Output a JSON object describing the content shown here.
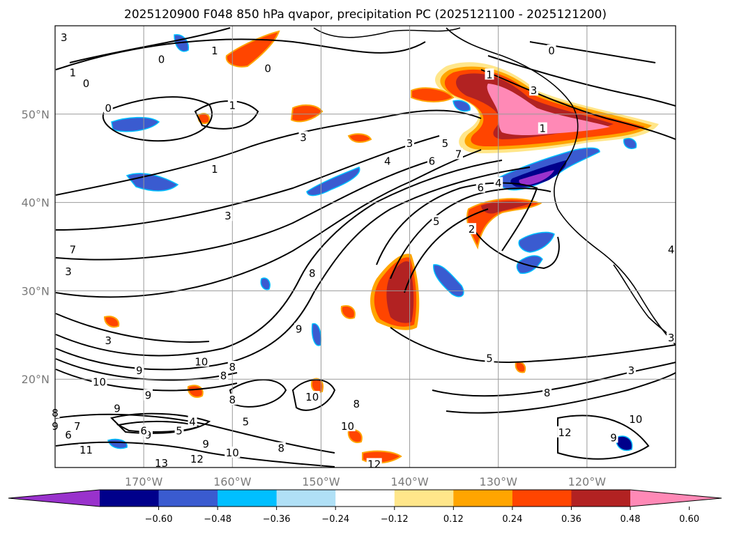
{
  "title": "2025120900 F048 850 hPa qvapor, precipitation PC (2025121100 - 2025121200)",
  "map": {
    "lon_range": [
      -180,
      -110
    ],
    "lat_range": [
      10,
      60
    ],
    "lon_ticks": [
      {
        "value": -170,
        "label": "170°W"
      },
      {
        "value": -160,
        "label": "160°W"
      },
      {
        "value": -150,
        "label": "150°W"
      },
      {
        "value": -140,
        "label": "140°W"
      },
      {
        "value": -130,
        "label": "130°W"
      },
      {
        "value": -120,
        "label": "120°W"
      }
    ],
    "lat_ticks": [
      {
        "value": 20,
        "label": "20°N"
      },
      {
        "value": 30,
        "label": "30°N"
      },
      {
        "value": 40,
        "label": "40°N"
      },
      {
        "value": 50,
        "label": "50°N"
      }
    ],
    "grid": true
  },
  "contour_labels": [
    {
      "text": "3",
      "lon": -179,
      "lat": 58.5
    },
    {
      "text": "1",
      "lon": -178,
      "lat": 54.5
    },
    {
      "text": "0",
      "lon": -176.5,
      "lat": 53.3
    },
    {
      "text": "0",
      "lon": -168,
      "lat": 56
    },
    {
      "text": "0",
      "lon": -156,
      "lat": 55
    },
    {
      "text": "0",
      "lon": -174,
      "lat": 50.5
    },
    {
      "text": "1",
      "lon": -160,
      "lat": 50.8
    },
    {
      "text": "3",
      "lon": -152,
      "lat": 47.2
    },
    {
      "text": "1",
      "lon": -162,
      "lat": 43.6
    },
    {
      "text": "3",
      "lon": -140,
      "lat": 46.5
    },
    {
      "text": "4",
      "lon": -142.5,
      "lat": 44.5
    },
    {
      "text": "5",
      "lon": -136,
      "lat": 46.5
    },
    {
      "text": "6",
      "lon": -137.5,
      "lat": 44.5
    },
    {
      "text": "7",
      "lon": -134.5,
      "lat": 45.3
    },
    {
      "text": "6",
      "lon": -132,
      "lat": 41.5
    },
    {
      "text": "4",
      "lon": -130,
      "lat": 42
    },
    {
      "text": "2",
      "lon": -133,
      "lat": 36.8
    },
    {
      "text": "5",
      "lon": -137,
      "lat": 37.7
    },
    {
      "text": "3",
      "lon": -160.5,
      "lat": 38.3
    },
    {
      "text": "1",
      "lon": -162,
      "lat": 57
    },
    {
      "text": "7",
      "lon": -178,
      "lat": 34.5
    },
    {
      "text": "3",
      "lon": -178.5,
      "lat": 32
    },
    {
      "text": "8",
      "lon": -151,
      "lat": 31.8
    },
    {
      "text": "3",
      "lon": -174,
      "lat": 24.2
    },
    {
      "text": "9",
      "lon": -170.5,
      "lat": 20.8
    },
    {
      "text": "10",
      "lon": -163.5,
      "lat": 21.8
    },
    {
      "text": "10",
      "lon": -175,
      "lat": 19.5
    },
    {
      "text": "8",
      "lon": -161,
      "lat": 20.2
    },
    {
      "text": "8",
      "lon": -160,
      "lat": 21.2
    },
    {
      "text": "9",
      "lon": -169.5,
      "lat": 18
    },
    {
      "text": "8",
      "lon": -180,
      "lat": 16
    },
    {
      "text": "9",
      "lon": -173,
      "lat": 16.5
    },
    {
      "text": "9",
      "lon": -180,
      "lat": 14.5
    },
    {
      "text": "7",
      "lon": -177.5,
      "lat": 14.5
    },
    {
      "text": "6",
      "lon": -178.5,
      "lat": 13.5
    },
    {
      "text": "9",
      "lon": -169.5,
      "lat": 13.5
    },
    {
      "text": "4",
      "lon": -164.5,
      "lat": 15
    },
    {
      "text": "5",
      "lon": -166,
      "lat": 14
    },
    {
      "text": "6",
      "lon": -170,
      "lat": 14
    },
    {
      "text": "5",
      "lon": -158.5,
      "lat": 15
    },
    {
      "text": "8",
      "lon": -160,
      "lat": 17.5
    },
    {
      "text": "9",
      "lon": -163,
      "lat": 12.5
    },
    {
      "text": "10",
      "lon": -151,
      "lat": 17.8
    },
    {
      "text": "10",
      "lon": -160,
      "lat": 11.5
    },
    {
      "text": "11",
      "lon": -176.5,
      "lat": 11.8
    },
    {
      "text": "12",
      "lon": -164,
      "lat": 10.8
    },
    {
      "text": "13",
      "lon": -168,
      "lat": 10.3
    },
    {
      "text": "8",
      "lon": -146,
      "lat": 17
    },
    {
      "text": "10",
      "lon": -147,
      "lat": 14.5
    },
    {
      "text": "8",
      "lon": -154.5,
      "lat": 12
    },
    {
      "text": "12",
      "lon": -144,
      "lat": 10.2
    },
    {
      "text": "9",
      "lon": -152.5,
      "lat": 25.5
    },
    {
      "text": "5",
      "lon": -131,
      "lat": 22.2
    },
    {
      "text": "3",
      "lon": -115,
      "lat": 20.8
    },
    {
      "text": "8",
      "lon": -124.5,
      "lat": 18.3
    },
    {
      "text": "12",
      "lon": -122.5,
      "lat": 13.8
    },
    {
      "text": "10",
      "lon": -114.5,
      "lat": 15.3
    },
    {
      "text": "9",
      "lon": -117,
      "lat": 13.2
    },
    {
      "text": "3",
      "lon": -110.5,
      "lat": 24.5
    },
    {
      "text": "4",
      "lon": -110.5,
      "lat": 34.5
    },
    {
      "text": "0",
      "lon": -124,
      "lat": 57
    },
    {
      "text": "1",
      "lon": -125,
      "lat": 48.2
    },
    {
      "text": "1",
      "lon": -131,
      "lat": 54.3
    },
    {
      "text": "3",
      "lon": -126,
      "lat": 52.5
    }
  ],
  "colorbar": {
    "ticks": [
      "−0.60",
      "−0.48",
      "−0.36",
      "−0.24",
      "−0.12",
      "0.12",
      "0.24",
      "0.36",
      "0.48",
      "0.60"
    ],
    "colors": [
      "#9932cc",
      "#00008b",
      "#3a5bd0",
      "#00bfff",
      "#b0e0f6",
      "#ffffff",
      "#ffe68a",
      "#ffa500",
      "#ff4500",
      "#b22222",
      "#ff89b6"
    ]
  }
}
